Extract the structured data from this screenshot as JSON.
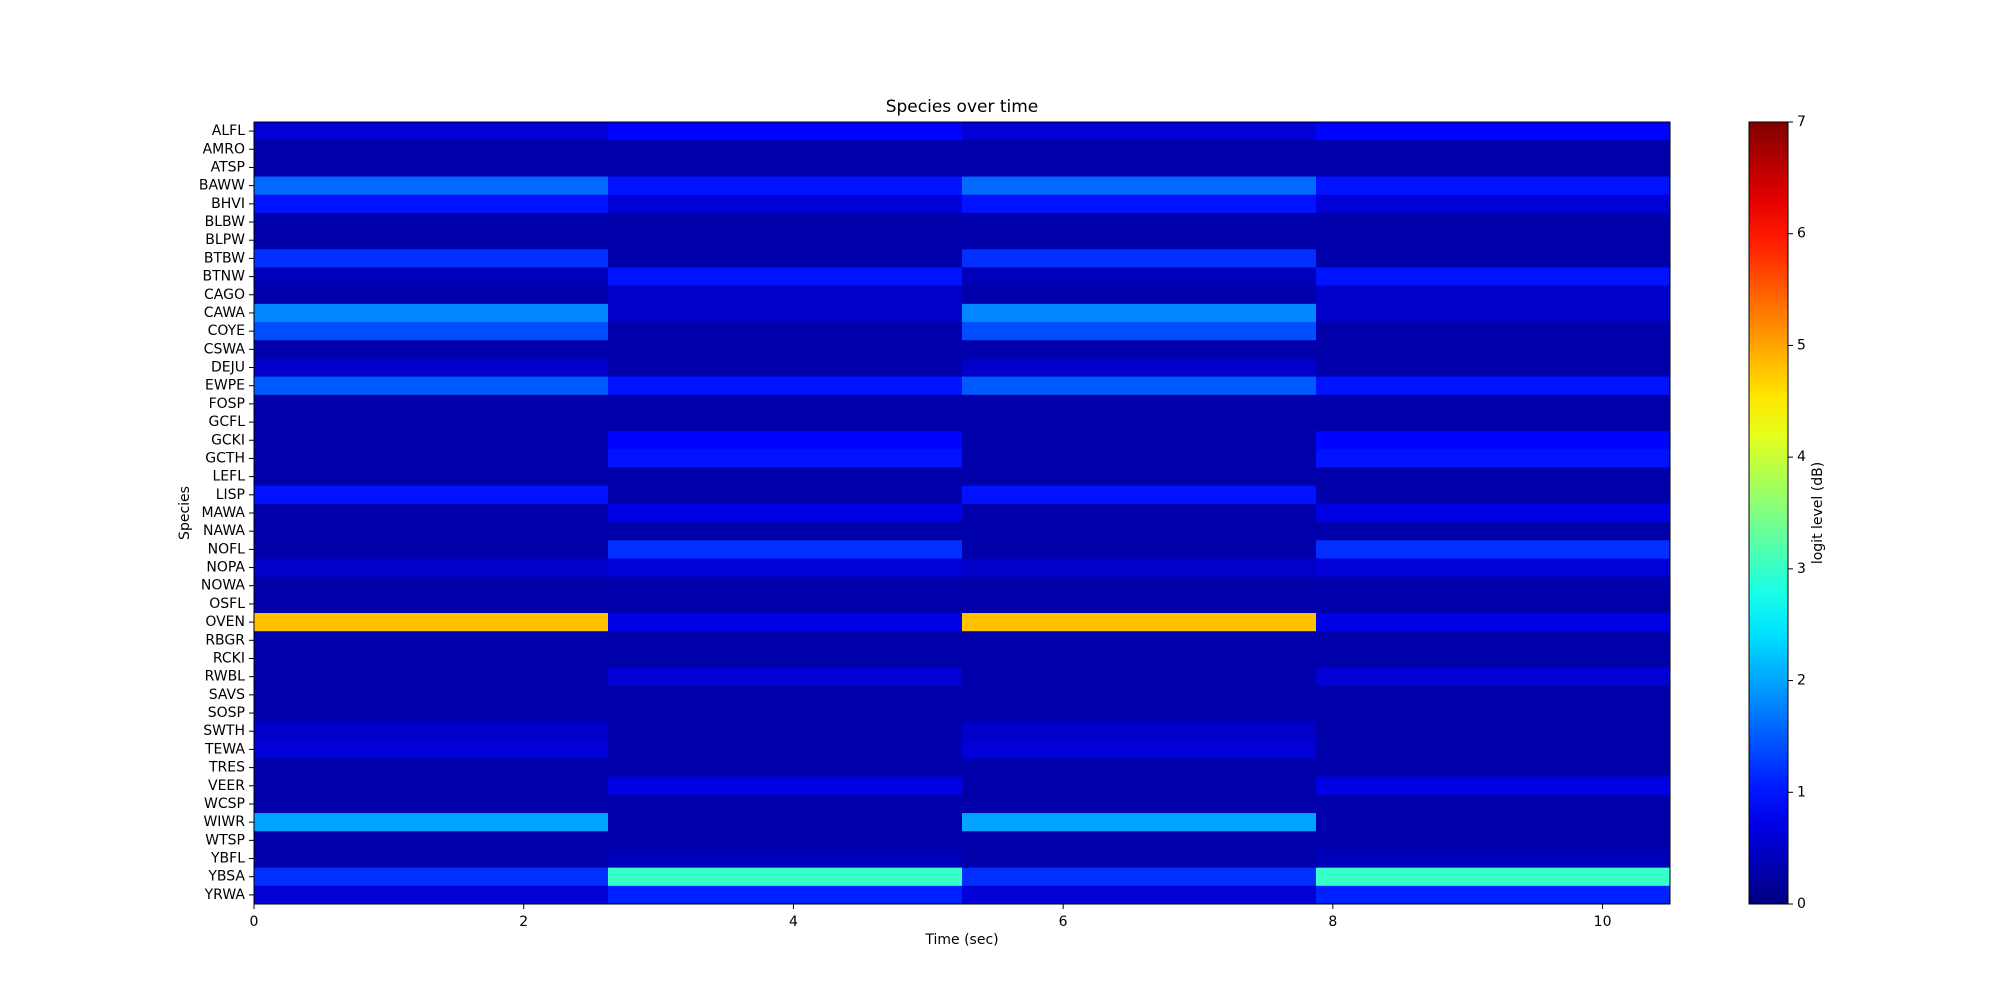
{
  "chart_data": {
    "type": "heatmap",
    "title": "Species over time",
    "xlabel": "Time (sec)",
    "ylabel": "Species",
    "colorbar_label": "logit level (dB)",
    "colormap": "jet",
    "x": [
      0,
      2.625,
      5.25,
      7.875,
      10.5
    ],
    "xlim": [
      0,
      10.5
    ],
    "xticks": [
      0,
      2,
      4,
      6,
      8,
      10
    ],
    "clim": [
      0,
      7
    ],
    "cticks": [
      0,
      1,
      2,
      3,
      4,
      5,
      6,
      7
    ],
    "categories": [
      "ALFL",
      "AMRO",
      "ATSP",
      "BAWW",
      "BHVI",
      "BLBW",
      "BLPW",
      "BTBW",
      "BTNW",
      "CAGO",
      "CAWA",
      "COYE",
      "CSWA",
      "DEJU",
      "EWPE",
      "FOSP",
      "GCFL",
      "GCKI",
      "GCTH",
      "LEFL",
      "LISP",
      "MAWA",
      "NAWA",
      "NOFL",
      "NOPA",
      "NOWA",
      "OSFL",
      "OVEN",
      "RBGR",
      "RCKI",
      "RWBL",
      "SAVS",
      "SOSP",
      "SWTH",
      "TEWA",
      "TRES",
      "VEER",
      "WCSP",
      "WIWR",
      "WTSP",
      "YBFL",
      "YBSA",
      "YRWA"
    ],
    "values": [
      [
        0.6,
        0.9,
        0.6,
        0.9
      ],
      [
        0.3,
        0.3,
        0.3,
        0.3
      ],
      [
        0.3,
        0.3,
        0.3,
        0.3
      ],
      [
        1.6,
        1.0,
        1.6,
        1.0
      ],
      [
        1.0,
        0.6,
        1.0,
        0.6
      ],
      [
        0.3,
        0.3,
        0.3,
        0.3
      ],
      [
        0.3,
        0.3,
        0.3,
        0.3
      ],
      [
        1.2,
        0.3,
        1.2,
        0.3
      ],
      [
        0.4,
        1.0,
        0.4,
        1.0
      ],
      [
        0.3,
        0.5,
        0.3,
        0.5
      ],
      [
        1.8,
        0.5,
        1.8,
        0.5
      ],
      [
        1.4,
        0.3,
        1.4,
        0.3
      ],
      [
        0.3,
        0.3,
        0.3,
        0.3
      ],
      [
        0.5,
        0.3,
        0.5,
        0.3
      ],
      [
        1.5,
        1.0,
        1.5,
        1.0
      ],
      [
        0.3,
        0.3,
        0.3,
        0.3
      ],
      [
        0.3,
        0.3,
        0.3,
        0.3
      ],
      [
        0.3,
        0.9,
        0.3,
        0.9
      ],
      [
        0.3,
        1.0,
        0.3,
        1.0
      ],
      [
        0.3,
        0.3,
        0.3,
        0.3
      ],
      [
        1.0,
        0.3,
        1.0,
        0.3
      ],
      [
        0.3,
        0.7,
        0.3,
        0.7
      ],
      [
        0.3,
        0.3,
        0.3,
        0.3
      ],
      [
        0.3,
        1.2,
        0.3,
        1.2
      ],
      [
        0.5,
        0.6,
        0.5,
        0.6
      ],
      [
        0.3,
        0.3,
        0.3,
        0.3
      ],
      [
        0.3,
        0.3,
        0.3,
        0.3
      ],
      [
        4.8,
        0.7,
        4.8,
        0.7
      ],
      [
        0.3,
        0.3,
        0.3,
        0.3
      ],
      [
        0.3,
        0.3,
        0.3,
        0.3
      ],
      [
        0.3,
        0.6,
        0.3,
        0.6
      ],
      [
        0.3,
        0.3,
        0.3,
        0.3
      ],
      [
        0.3,
        0.3,
        0.3,
        0.3
      ],
      [
        0.5,
        0.3,
        0.5,
        0.3
      ],
      [
        0.6,
        0.3,
        0.6,
        0.3
      ],
      [
        0.3,
        0.3,
        0.3,
        0.3
      ],
      [
        0.3,
        0.7,
        0.3,
        0.7
      ],
      [
        0.3,
        0.3,
        0.3,
        0.3
      ],
      [
        2.0,
        0.3,
        2.0,
        0.3
      ],
      [
        0.3,
        0.3,
        0.3,
        0.3
      ],
      [
        0.3,
        0.4,
        0.3,
        0.4
      ],
      [
        1.2,
        3.0,
        1.2,
        3.0
      ],
      [
        0.6,
        1.1,
        0.6,
        1.1
      ]
    ]
  }
}
